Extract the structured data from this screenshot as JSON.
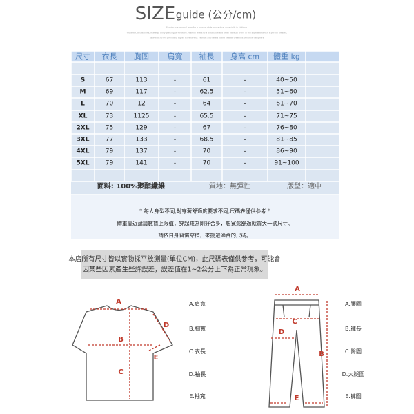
{
  "header": {
    "title": "SIZE",
    "subtitle": "guide (公分/cm)",
    "tagline": [
      "Fashion is a general term for a popular style or practice, especially in clothing,",
      "footwear, accessories, makeup, body piercing or furniture. Fashion refers to a distinctive and often habitual trend in the style with which a person dresses,",
      "as well as to the prevailing styles in behaviour. Fashion also refers to the newest creations of textile designers."
    ]
  },
  "table": {
    "columns": [
      "尺寸",
      "衣長",
      "胸圍",
      "肩寬",
      "袖長",
      "身高 cm",
      "體重 kg"
    ],
    "rows": [
      [
        "S",
        "67",
        "113",
        "-",
        "61",
        "-",
        "40~50"
      ],
      [
        "M",
        "69",
        "117",
        "-",
        "62.5",
        "-",
        "51~60"
      ],
      [
        "L",
        "70",
        "12",
        "-",
        "64",
        "-",
        "61~70"
      ],
      [
        "XL",
        "73",
        "1125",
        "-",
        "65.5",
        "-",
        "71~75"
      ],
      [
        "2XL",
        "75",
        "129",
        "-",
        "67",
        "-",
        "76~80"
      ],
      [
        "3XL",
        "77",
        "133",
        "-",
        "68.5",
        "-",
        "81~85"
      ],
      [
        "4XL",
        "79",
        "137",
        "-",
        "70",
        "-",
        "86~90"
      ],
      [
        "5XL",
        "79",
        "141",
        "-",
        "70",
        "-",
        "91~100"
      ]
    ]
  },
  "details": {
    "fabric": "面料: 100%聚酯纖維",
    "texture": "質地：無彈性",
    "fit": "版型：適中"
  },
  "notes": [
    "* 每人身型不同,對穿著舒適度要求不同,尺碼表僅供參考 *",
    "體重靠近建議數據上限值，穿起來為剛好合身，想寬鬆舒適就買大一號尺寸。",
    "請依自身習慣穿搭，來挑選適合的尺碼。"
  ],
  "disclaimer": [
    "本店所有尺寸皆以實物採平放測量(單位CM)，此尺碼表僅供參考，可能會",
    "因某些因素產生些許誤差，誤差值在1~2公分上下為正常現象。"
  ],
  "top_diagram": {
    "markers": [
      "A",
      "B",
      "C",
      "D",
      "E"
    ],
    "legend": [
      "A.肩寬",
      "B.胸寬",
      "C.衣長",
      "D.袖長",
      "E.袖寬"
    ]
  },
  "pants_diagram": {
    "markers": [
      "A",
      "B",
      "C",
      "D",
      "E"
    ],
    "legend": [
      "A.腰圍",
      "B.褲長",
      "C.臀圍",
      "D.大腿圍",
      "E.褲圍"
    ]
  }
}
